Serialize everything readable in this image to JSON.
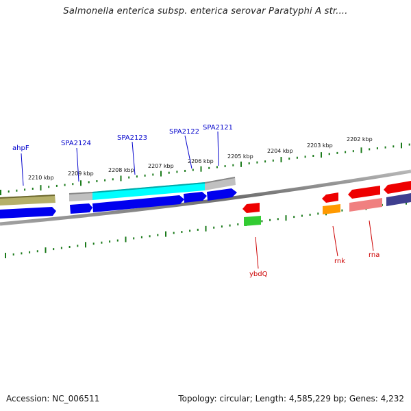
{
  "title": "Salmonella enterica subsp. enterica serovar Paratyphi A str....",
  "footer": {
    "accession": "Accession: NC_006511",
    "stats": "Topology: circular; Length: 4,585,229 bp; Genes: 4,232"
  },
  "colors": {
    "tick": "#1a7a1a",
    "forward_label": "#0000cc",
    "reverse_label": "#cc0000",
    "backbone": "#808080"
  },
  "ruler": {
    "unit": "kbp",
    "ticks": [
      {
        "label": "2210 kbp"
      },
      {
        "label": "2209 kbp"
      },
      {
        "label": "2208 kbp"
      },
      {
        "label": "2207 kbp"
      },
      {
        "label": "2206 kbp"
      },
      {
        "label": "2205 kbp"
      },
      {
        "label": "2204 kbp"
      },
      {
        "label": "2203 kbp"
      },
      {
        "label": "2202 kbp"
      }
    ]
  },
  "genes": {
    "forward": [
      {
        "name": "ahpF",
        "color": "#b5b06a"
      },
      {
        "name": "SPA2124",
        "color": "#0000ee"
      },
      {
        "name": "SPA2123",
        "color": "#00ffff"
      },
      {
        "name": "SPA2122",
        "color": "#0000ee"
      },
      {
        "name": "SPA2121",
        "color": "#0000ee"
      }
    ],
    "reverse": [
      {
        "name": "ybdQ",
        "color": "#ee0000"
      },
      {
        "name": "rnk",
        "color": "#ee0000"
      },
      {
        "name": "rna",
        "color": "#ee0000"
      }
    ]
  }
}
